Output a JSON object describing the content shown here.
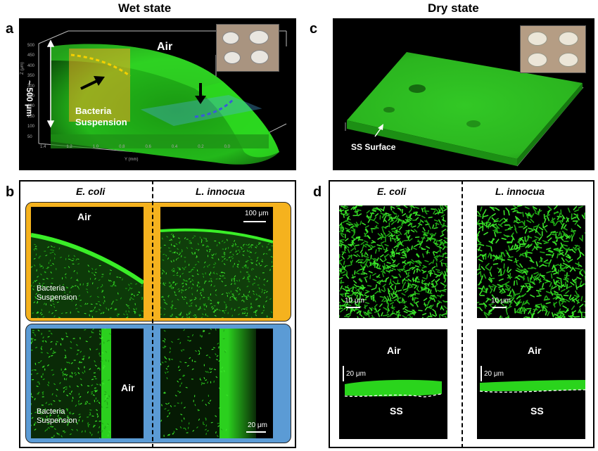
{
  "figure": {
    "headings": {
      "wet": "Wet state",
      "dry": "Dry state"
    },
    "panel_a": {
      "letter": "a",
      "air": "Air",
      "bacteria": "Bacteria\nSuspension",
      "height_label": "~ 500 μm",
      "z_axis_label": "Z (μm)",
      "z_ticks": [
        "500",
        "450",
        "400",
        "350",
        "300",
        "250",
        "200",
        "150",
        "100",
        "50"
      ],
      "x_ticks": [
        "1.4",
        "1.2",
        "1.0",
        "0.8",
        "0.6",
        "0.4",
        "0.2",
        "0.0"
      ],
      "x_axis_label": "Y (mm)",
      "y_ticks": [
        "0.2",
        "0.4",
        "0.6"
      ],
      "colors": {
        "orange": "#f5a623",
        "blue": "#4fb0e8",
        "green": "#33dd22"
      }
    },
    "panel_b": {
      "letter": "b",
      "ecoli": "E. coli",
      "linnocua": "L. innocua",
      "air_top": "Air",
      "bacteria_top": "Bacteria\nSuspension",
      "air_bottom": "Air",
      "bacteria_bottom": "Bacteria\nSuspension",
      "scale_top": "100 μm",
      "scale_bottom": "20 μm"
    },
    "panel_c": {
      "letter": "c",
      "surface": "SS Surface"
    },
    "panel_d": {
      "letter": "d",
      "ecoli": "E. coli",
      "linnocua": "L. innocua",
      "scale_top_left": "10 μm",
      "scale_top_right": "10 μm",
      "air_left": "Air",
      "air_right": "Air",
      "ss_left": "SS",
      "ss_right": "SS",
      "scale_bottom_left": "20 μm",
      "scale_bottom_right": "20 μm"
    }
  }
}
